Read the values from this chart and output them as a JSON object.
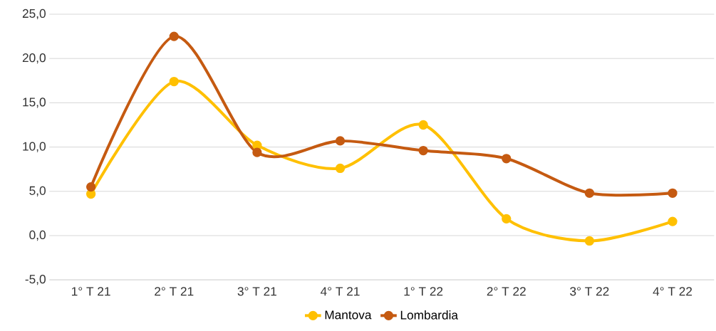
{
  "chart_data": {
    "type": "line",
    "categories": [
      "1° T 21",
      "2° T 21",
      "3° T 21",
      "4° T 21",
      "1° T 22",
      "2° T 22",
      "3° T 22",
      "4° T 22"
    ],
    "series": [
      {
        "name": "Mantova",
        "color": "#ffc000",
        "values": [
          4.7,
          17.4,
          10.2,
          7.6,
          12.5,
          1.9,
          -0.6,
          1.6
        ]
      },
      {
        "name": "Lombardia",
        "color": "#c55a11",
        "values": [
          5.5,
          22.5,
          9.4,
          10.7,
          9.6,
          8.7,
          4.8,
          4.8
        ]
      }
    ],
    "ylim": [
      -5,
      25
    ],
    "yticks": [
      {
        "value": -5,
        "label": "-5,0"
      },
      {
        "value": 0,
        "label": "0,0"
      },
      {
        "value": 5,
        "label": "5,0"
      },
      {
        "value": 10,
        "label": "10,0"
      },
      {
        "value": 15,
        "label": "15,0"
      },
      {
        "value": 20,
        "label": "20,0"
      },
      {
        "value": 25,
        "label": "25,0"
      }
    ],
    "grid": "y",
    "legend": "bottom",
    "marker": "circle",
    "line_style": "solid"
  }
}
